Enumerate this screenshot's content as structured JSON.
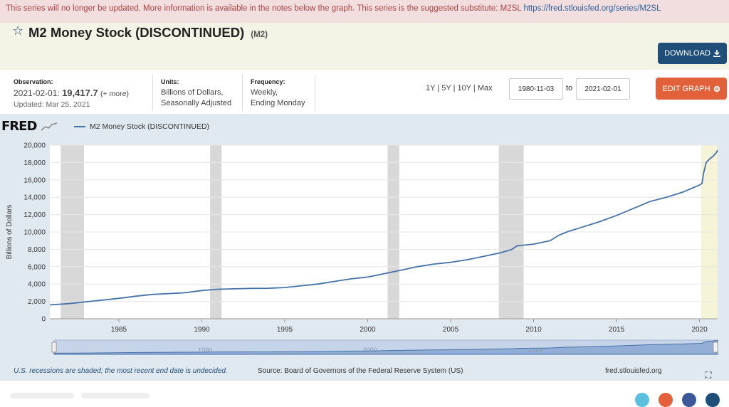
{
  "notice": {
    "text": "This series will no longer be updated. More information is available in the notes below the graph. This series is the suggested substitute: M2SL",
    "link": "https://fred.stlouisfed.org/series/M2SL"
  },
  "header": {
    "title": "M2 Money Stock (DISCONTINUED)",
    "series_id": "(M2)",
    "download_label": "DOWNLOAD"
  },
  "meta": {
    "observation_label": "Observation:",
    "observation_date": "2021-02-01:",
    "observation_value": "19,417.7",
    "observation_more": "(+ more)",
    "updated": "Updated: Mar 25, 2021",
    "units_label": "Units:",
    "units_line1": "Billions of Dollars,",
    "units_line2": "Seasonally Adjusted",
    "frequency_label": "Frequency:",
    "frequency_line1": "Weekly,",
    "frequency_line2": "Ending Monday"
  },
  "range": {
    "links": [
      "1Y",
      "5Y",
      "10Y",
      "Max"
    ],
    "separator": " | ",
    "start": "1980-11-03",
    "to": "to",
    "end": "2021-02-01",
    "edit_label": "EDIT GRAPH"
  },
  "chart_header": {
    "logo": "FRED",
    "legend": "M2 Money Stock (DISCONTINUED)"
  },
  "footer": {
    "note": "U.S. recessions are shaded; the most recent end date is undecided.",
    "source": "Source: Board of Governors of the Federal Reserve System (US)",
    "site": "fred.stlouisfed.org"
  },
  "colors": {
    "line": "#4572a7",
    "recession": "#d8d8d8",
    "covid": "#f5f3d8",
    "download_button": "#1f4e79",
    "edit_button": "#e2613a"
  },
  "chart_data": {
    "type": "line",
    "ylabel": "Billions of Dollars",
    "xlabel": "",
    "ylim": [
      0,
      20000
    ],
    "xlim": [
      1980.84,
      2021.09
    ],
    "yticks": [
      0,
      2000,
      4000,
      6000,
      8000,
      10000,
      12000,
      14000,
      16000,
      18000,
      20000
    ],
    "ytick_labels": [
      "0",
      "2,000",
      "4,000",
      "6,000",
      "8,000",
      "10,000",
      "12,000",
      "14,000",
      "16,000",
      "18,000",
      "20,000"
    ],
    "xticks": [
      1985,
      1990,
      1995,
      2000,
      2005,
      2010,
      2015,
      2020
    ],
    "xtick_labels": [
      "1985",
      "1990",
      "1995",
      "2000",
      "2005",
      "2010",
      "2015",
      "2020"
    ],
    "navigator_labels": [
      "1990",
      "2000",
      "2010"
    ],
    "recessions": [
      [
        1981.5,
        1982.9
      ],
      [
        1990.5,
        1991.2
      ],
      [
        2001.2,
        2001.9
      ],
      [
        2007.9,
        2009.4
      ],
      [
        2020.1,
        2021.09
      ]
    ],
    "series": [
      {
        "name": "M2 Money Stock (DISCONTINUED)",
        "x": [
          1980.84,
          1982,
          1983,
          1984,
          1985,
          1986,
          1987,
          1988,
          1989,
          1990,
          1991,
          1992,
          1993,
          1994,
          1995,
          1996,
          1997,
          1998,
          1999,
          2000,
          2001,
          2002,
          2003,
          2004,
          2005,
          2006,
          2007,
          2008,
          2008.7,
          2009,
          2010,
          2011,
          2011.5,
          2012,
          2013,
          2014,
          2015,
          2016,
          2017,
          2018,
          2019,
          2020,
          2020.15,
          2020.25,
          2020.4,
          2020.6,
          2020.8,
          2021,
          2021.09
        ],
        "y": [
          1600,
          1750,
          1950,
          2150,
          2350,
          2600,
          2800,
          2900,
          3000,
          3250,
          3400,
          3450,
          3500,
          3520,
          3600,
          3800,
          4000,
          4300,
          4600,
          4800,
          5200,
          5600,
          6000,
          6300,
          6500,
          6800,
          7200,
          7600,
          8000,
          8400,
          8600,
          9000,
          9600,
          10000,
          10600,
          11200,
          11900,
          12700,
          13500,
          14000,
          14600,
          15400,
          15600,
          16800,
          18000,
          18400,
          18700,
          19100,
          19418
        ]
      }
    ]
  }
}
